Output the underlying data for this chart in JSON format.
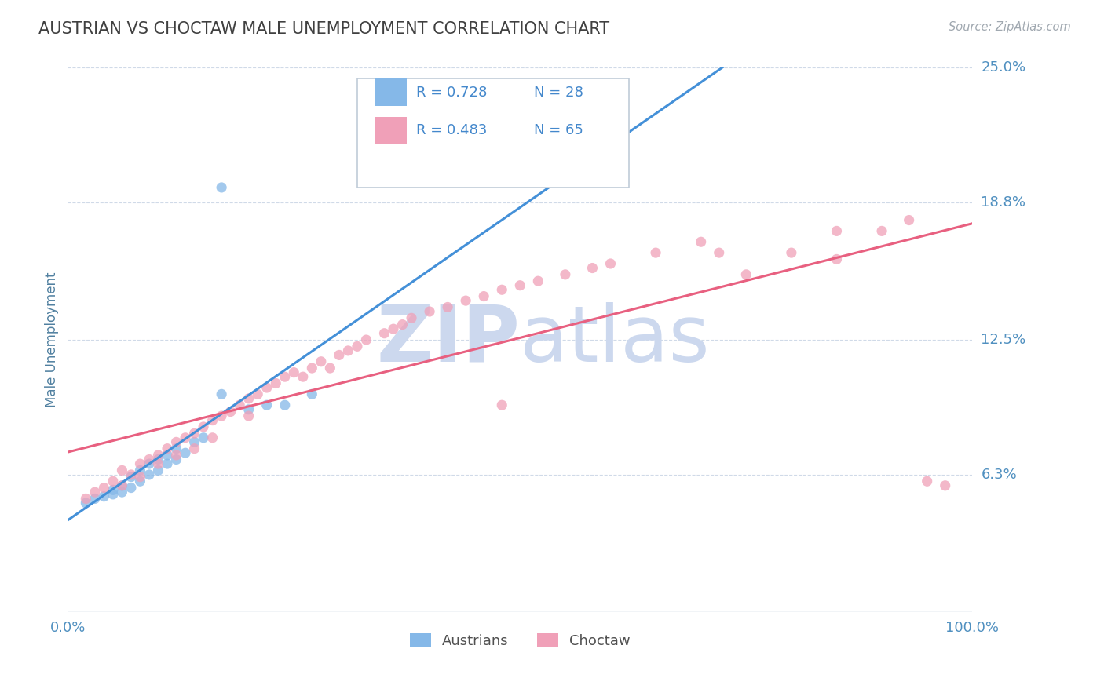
{
  "title": "AUSTRIAN VS CHOCTAW MALE UNEMPLOYMENT CORRELATION CHART",
  "source_text": "Source: ZipAtlas.com",
  "ylabel": "Male Unemployment",
  "xlim": [
    0.0,
    1.0
  ],
  "ylim": [
    0.0,
    0.25
  ],
  "legend_r1": "R = 0.728",
  "legend_n1": "N = 28",
  "legend_r2": "R = 0.483",
  "legend_n2": "N = 65",
  "austrians_color": "#85b8e8",
  "choctaw_color": "#f0a0b8",
  "austrians_line_color": "#4490d8",
  "choctaw_line_color": "#e86080",
  "watermark_color": "#ccd8ee",
  "title_color": "#404040",
  "axis_label_color": "#5080a0",
  "tick_color": "#5090c0",
  "background_color": "#ffffff",
  "grid_color": "#d0dae8",
  "austrians_x": [
    0.02,
    0.03,
    0.04,
    0.05,
    0.05,
    0.06,
    0.06,
    0.07,
    0.07,
    0.08,
    0.08,
    0.09,
    0.09,
    0.1,
    0.1,
    0.11,
    0.11,
    0.12,
    0.12,
    0.13,
    0.14,
    0.15,
    0.17,
    0.2,
    0.22,
    0.24,
    0.27,
    0.17
  ],
  "austrians_y": [
    0.05,
    0.052,
    0.053,
    0.054,
    0.056,
    0.055,
    0.058,
    0.057,
    0.062,
    0.06,
    0.065,
    0.063,
    0.068,
    0.065,
    0.07,
    0.068,
    0.072,
    0.07,
    0.075,
    0.073,
    0.078,
    0.08,
    0.1,
    0.093,
    0.095,
    0.095,
    0.1,
    0.195
  ],
  "choctaw_x": [
    0.02,
    0.03,
    0.04,
    0.05,
    0.06,
    0.06,
    0.07,
    0.08,
    0.08,
    0.09,
    0.1,
    0.1,
    0.11,
    0.12,
    0.12,
    0.13,
    0.14,
    0.14,
    0.15,
    0.16,
    0.16,
    0.17,
    0.18,
    0.19,
    0.2,
    0.2,
    0.21,
    0.22,
    0.23,
    0.24,
    0.25,
    0.26,
    0.27,
    0.28,
    0.29,
    0.3,
    0.31,
    0.32,
    0.33,
    0.35,
    0.36,
    0.37,
    0.38,
    0.4,
    0.42,
    0.44,
    0.46,
    0.48,
    0.5,
    0.52,
    0.55,
    0.58,
    0.6,
    0.65,
    0.7,
    0.75,
    0.8,
    0.85,
    0.9,
    0.93,
    0.95,
    0.72,
    0.48,
    0.85,
    0.97
  ],
  "choctaw_y": [
    0.052,
    0.055,
    0.057,
    0.06,
    0.058,
    0.065,
    0.063,
    0.062,
    0.068,
    0.07,
    0.068,
    0.072,
    0.075,
    0.072,
    0.078,
    0.08,
    0.082,
    0.075,
    0.085,
    0.088,
    0.08,
    0.09,
    0.092,
    0.095,
    0.098,
    0.09,
    0.1,
    0.103,
    0.105,
    0.108,
    0.11,
    0.108,
    0.112,
    0.115,
    0.112,
    0.118,
    0.12,
    0.122,
    0.125,
    0.128,
    0.13,
    0.132,
    0.135,
    0.138,
    0.14,
    0.143,
    0.145,
    0.148,
    0.15,
    0.152,
    0.155,
    0.158,
    0.16,
    0.165,
    0.17,
    0.155,
    0.165,
    0.162,
    0.175,
    0.18,
    0.06,
    0.165,
    0.095,
    0.175,
    0.058
  ]
}
